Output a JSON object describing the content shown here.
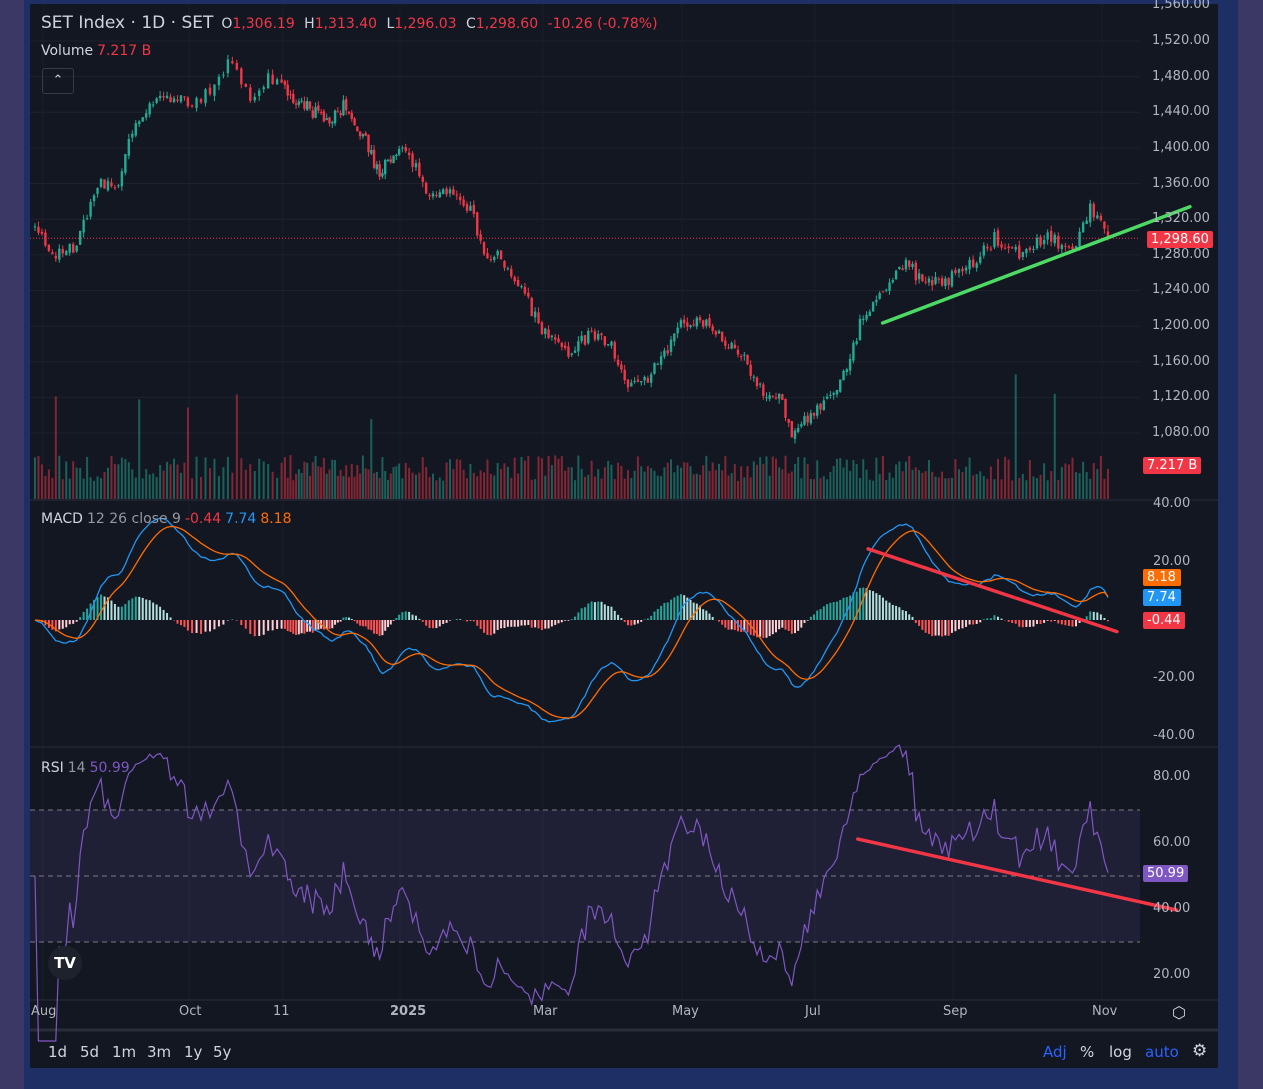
{
  "header": {
    "symbol": "SET Index · 1D · SET",
    "open_label": "O",
    "open": "1,306.19",
    "high_label": "H",
    "high": "1,313.40",
    "low_label": "L",
    "low": "1,296.03",
    "close_label": "C",
    "close": "1,298.60",
    "change": "-10.26 (-0.78%)"
  },
  "volume_legend": {
    "label": "Volume",
    "value": "7.217 B"
  },
  "collapse_icon": "chevron-up-icon",
  "macd_legend": {
    "label": "MACD",
    "params": "12 26 close 9",
    "hist": "-0.44",
    "macd": "7.74",
    "signal": "8.18"
  },
  "rsi_legend": {
    "label": "RSI",
    "params": "14",
    "value": "50.99"
  },
  "tags": {
    "price": "1,298.60",
    "volume": "7.217 B",
    "signal": "8.18",
    "macd": "7.74",
    "hist": "-0.44",
    "rsi": "50.99"
  },
  "price_ticks": [
    "1,560.00",
    "1,520.00",
    "1,480.00",
    "1,440.00",
    "1,400.00",
    "1,360.00",
    "1,320.00",
    "1,280.00",
    "1,240.00",
    "1,200.00",
    "1,160.00",
    "1,120.00",
    "1,080.00"
  ],
  "macd_ticks": [
    "40.00",
    "20.00",
    "-20.00",
    "-40.00"
  ],
  "rsi_ticks": [
    "80.00",
    "60.00",
    "40.00",
    "20.00"
  ],
  "time_labels": [
    "Aug",
    "Oct",
    "11",
    "2025",
    "Mar",
    "May",
    "Jul",
    "Sep",
    "Nov"
  ],
  "toolbar": {
    "ranges": [
      "1d",
      "5d",
      "1m",
      "3m",
      "1y",
      "5y"
    ],
    "adj": "Adj",
    "percent": "%",
    "log": "log",
    "auto": "auto"
  },
  "logo_text": "TV",
  "colors": {
    "up": "#22ab94",
    "down": "#f23645",
    "macd": "#2196f3",
    "signal": "#ff6d00",
    "rsi": "#7e57c2",
    "trend_green": "#4cd964",
    "trend_red": "#f23645"
  },
  "chart_data": {
    "type": "candlestick",
    "title": "SET Index · 1D · SET",
    "time_unit": "months since Aug 2024",
    "time_ticks": [
      {
        "label": "Aug",
        "m": 0
      },
      {
        "label": "Oct",
        "m": 2
      },
      {
        "label": "11",
        "m": 3
      },
      {
        "label": "2025",
        "m": 5
      },
      {
        "label": "Mar",
        "m": 7
      },
      {
        "label": "May",
        "m": 9
      },
      {
        "label": "Jul",
        "m": 11
      },
      {
        "label": "Sep",
        "m": 13
      },
      {
        "label": "Nov",
        "m": 15
      }
    ],
    "price_range": [
      1060,
      1560
    ],
    "price_path": [
      [
        -0.11,
        1310
      ],
      [
        0.1,
        1280
      ],
      [
        0.44,
        1290
      ],
      [
        0.78,
        1360
      ],
      [
        1.05,
        1360
      ],
      [
        1.19,
        1420
      ],
      [
        1.6,
        1460
      ],
      [
        2.12,
        1450
      ],
      [
        2.44,
        1500
      ],
      [
        2.65,
        1460
      ],
      [
        2.86,
        1480
      ],
      [
        3.29,
        1450
      ],
      [
        3.8,
        1430
      ],
      [
        4.06,
        1450
      ],
      [
        4.32,
        1420
      ],
      [
        4.66,
        1370
      ],
      [
        4.91,
        1400
      ],
      [
        5.14,
        1390
      ],
      [
        5.42,
        1340
      ],
      [
        5.7,
        1350
      ],
      [
        5.98,
        1330
      ],
      [
        6.2,
        1280
      ],
      [
        6.41,
        1280
      ],
      [
        6.7,
        1240
      ],
      [
        7.03,
        1190
      ],
      [
        7.39,
        1170
      ],
      [
        7.68,
        1190
      ],
      [
        7.96,
        1180
      ],
      [
        8.18,
        1140
      ],
      [
        8.4,
        1130
      ],
      [
        8.68,
        1160
      ],
      [
        8.97,
        1200
      ],
      [
        9.27,
        1210
      ],
      [
        9.57,
        1190
      ],
      [
        9.87,
        1170
      ],
      [
        10.17,
        1130
      ],
      [
        10.47,
        1120
      ],
      [
        10.62,
        1080
      ],
      [
        10.92,
        1100
      ],
      [
        11.22,
        1120
      ],
      [
        11.43,
        1150
      ],
      [
        11.65,
        1200
      ],
      [
        11.94,
        1240
      ],
      [
        12.3,
        1270
      ],
      [
        12.59,
        1250
      ],
      [
        12.88,
        1250
      ],
      [
        13.23,
        1270
      ],
      [
        13.57,
        1300
      ],
      [
        13.9,
        1280
      ],
      [
        14.3,
        1300
      ],
      [
        14.57,
        1280
      ],
      [
        14.84,
        1330
      ],
      [
        15.08,
        1298.6
      ]
    ],
    "last": {
      "open": 1306.19,
      "high": 1313.4,
      "low": 1296.03,
      "close": 1298.6,
      "volume_B": 7.217
    },
    "macd": {
      "fast": 12,
      "slow": 26,
      "signal": 9,
      "range": [
        -40,
        40
      ],
      "last": {
        "macd": 7.74,
        "signal": 8.18,
        "hist": -0.44
      }
    },
    "rsi": {
      "period": 14,
      "range": [
        10,
        90
      ],
      "bands": [
        30,
        70
      ],
      "mid": 50,
      "last": 50.99
    },
    "trendlines": [
      {
        "pane": "price",
        "color": "green",
        "from": [
          11.98,
          1203.5
        ],
        "to": [
          16.18,
          1334
        ]
      },
      {
        "pane": "macd",
        "color": "red",
        "from": [
          11.77,
          24.5
        ],
        "to": [
          15.2,
          -4
        ]
      },
      {
        "pane": "rsi",
        "color": "red",
        "from": [
          11.62,
          61.2
        ],
        "to": [
          16.0,
          39.7
        ]
      }
    ]
  }
}
